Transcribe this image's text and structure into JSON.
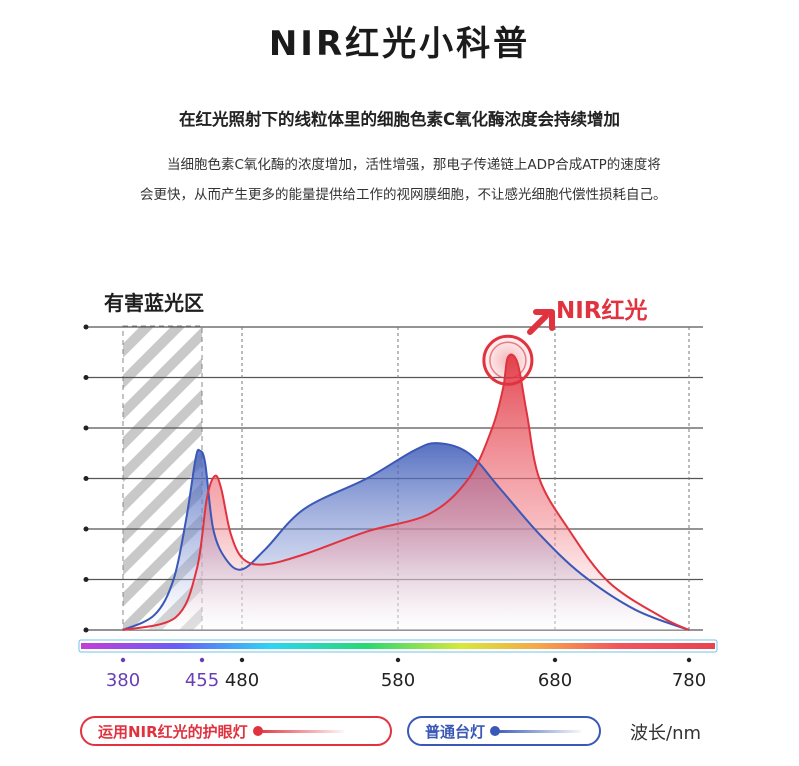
{
  "page": {
    "title": "NIR红光小科普",
    "subtitle": "在红光照射下的线粒体里的细胞色素C氧化酶浓度会持续增加",
    "body": "当细胞色素C氧化酶的浓度增加，活性增强，那电子传递链上ADP合成ATP的速度将会更快，从而产生更多的能量提供给工作的视网膜细胞，不让感光细胞代偿性损耗自己。"
  },
  "colors": {
    "nir_red": "#e0333f",
    "lamp_blue": "#3a58b7",
    "grid": "#555555",
    "hazard_band": "#9a9a9a"
  },
  "chart_data": {
    "type": "area",
    "title": "",
    "xlabel": "波长/nm",
    "ylabel": "",
    "x_ticks": [
      380,
      455,
      480,
      580,
      680,
      780
    ],
    "xlim": [
      380,
      780
    ],
    "ylim": [
      0,
      6
    ],
    "grid": true,
    "hazard_band": {
      "label": "有害蓝光区",
      "from": 380,
      "to": 455
    },
    "peak_annotation": {
      "label": "NIR红光",
      "x": 650
    },
    "series": [
      {
        "name": "运用NIR红光的护眼灯",
        "color": "#e0333f",
        "points": [
          [
            380,
            0
          ],
          [
            430,
            0.25
          ],
          [
            450,
            1.2
          ],
          [
            458,
            2.6
          ],
          [
            463,
            3.05
          ],
          [
            467,
            2.8
          ],
          [
            473,
            1.9
          ],
          [
            481,
            1.4
          ],
          [
            495,
            1.3
          ],
          [
            520,
            1.5
          ],
          [
            560,
            1.95
          ],
          [
            600,
            2.3
          ],
          [
            625,
            3.0
          ],
          [
            640,
            4.0
          ],
          [
            647,
            4.8
          ],
          [
            650,
            5.4
          ],
          [
            656,
            5.3
          ],
          [
            662,
            4.3
          ],
          [
            670,
            3.0
          ],
          [
            690,
            2.0
          ],
          [
            720,
            0.95
          ],
          [
            760,
            0.25
          ],
          [
            780,
            0
          ]
        ]
      },
      {
        "name": "普通台灯",
        "color": "#3a58b7",
        "points": [
          [
            380,
            0
          ],
          [
            410,
            0.3
          ],
          [
            428,
            1.0
          ],
          [
            440,
            2.2
          ],
          [
            449,
            3.4
          ],
          [
            453,
            3.55
          ],
          [
            457,
            3.3
          ],
          [
            462,
            2.0
          ],
          [
            470,
            1.4
          ],
          [
            480,
            1.2
          ],
          [
            495,
            1.6
          ],
          [
            520,
            2.4
          ],
          [
            560,
            3.0
          ],
          [
            590,
            3.55
          ],
          [
            605,
            3.7
          ],
          [
            625,
            3.5
          ],
          [
            645,
            2.8
          ],
          [
            670,
            1.9
          ],
          [
            700,
            1.1
          ],
          [
            740,
            0.4
          ],
          [
            780,
            0
          ]
        ]
      }
    ],
    "legend_position": "bottom"
  }
}
